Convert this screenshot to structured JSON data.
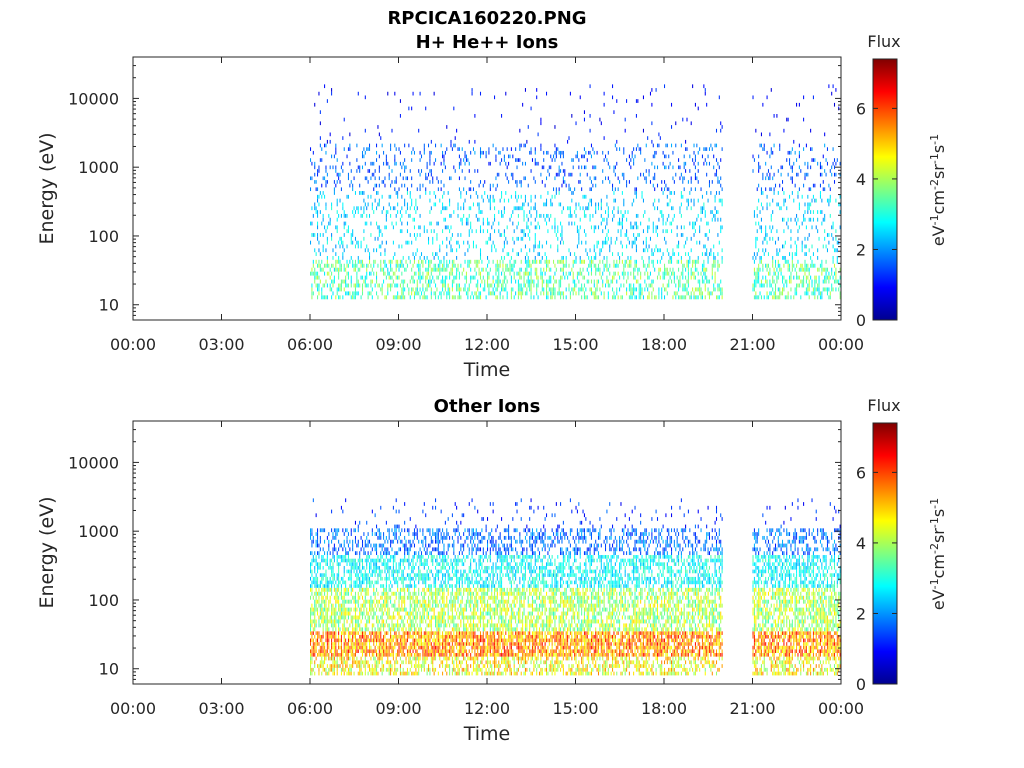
{
  "figure_title": "RPCICA160220.PNG",
  "chart_data": [
    {
      "type": "heatmap",
      "title": "H+ He++ Ions",
      "xlabel": "Time",
      "ylabel": "Energy (eV)",
      "x_tick_labels": [
        "00:00",
        "03:00",
        "06:00",
        "09:00",
        "12:00",
        "15:00",
        "18:00",
        "21:00",
        "00:00"
      ],
      "x_range_hours": [
        0,
        24
      ],
      "y_scale": "log",
      "y_range": [
        6,
        40000
      ],
      "y_ticks": [
        10,
        100,
        1000,
        10000
      ],
      "y_tick_labels": [
        "10",
        "100",
        "1000",
        "10000"
      ],
      "colorbar": {
        "title": "Flux",
        "label": "eV-1cm-2sr-1s-1",
        "range": [
          0,
          7.4
        ],
        "ticks": [
          0,
          2,
          4,
          6
        ],
        "tick_labels": [
          "0",
          "2",
          "4",
          "6"
        ],
        "colormap": "jet"
      },
      "data_coverage_hours": [
        [
          6.0,
          20.0
        ],
        [
          21.0,
          24.0
        ]
      ],
      "seed": 11,
      "columns_per_hour": 21,
      "bands": [
        {
          "e_min": 12,
          "e_max": 45,
          "density": 0.42,
          "flux": 3.4,
          "flux_jitter": 0.9
        },
        {
          "e_min": 45,
          "e_max": 450,
          "density": 0.18,
          "flux": 2.5,
          "flux_jitter": 0.6
        },
        {
          "e_min": 450,
          "e_max": 2200,
          "density": 0.16,
          "flux": 1.6,
          "flux_jitter": 0.6
        },
        {
          "e_min": 2200,
          "e_max": 16000,
          "density": 0.025,
          "flux": 1.0,
          "flux_jitter": 0.4
        }
      ]
    },
    {
      "type": "heatmap",
      "title": "Other Ions",
      "xlabel": "Time",
      "ylabel": "Energy (eV)",
      "x_tick_labels": [
        "00:00",
        "03:00",
        "06:00",
        "09:00",
        "12:00",
        "15:00",
        "18:00",
        "21:00",
        "00:00"
      ],
      "x_range_hours": [
        0,
        24
      ],
      "y_scale": "log",
      "y_range": [
        6,
        40000
      ],
      "y_ticks": [
        10,
        100,
        1000,
        10000
      ],
      "y_tick_labels": [
        "10",
        "100",
        "1000",
        "10000"
      ],
      "colorbar": {
        "title": "Flux",
        "label": "eV-1cm-2sr-1s-1",
        "range": [
          0,
          7.4
        ],
        "ticks": [
          0,
          2,
          4,
          6
        ],
        "tick_labels": [
          "0",
          "2",
          "4",
          "6"
        ],
        "colormap": "jet"
      },
      "data_coverage_hours": [
        [
          6.0,
          20.0
        ],
        [
          21.0,
          24.0
        ]
      ],
      "seed": 29,
      "columns_per_hour": 21,
      "bands": [
        {
          "e_min": 8,
          "e_max": 15,
          "density": 0.55,
          "flux": 4.6,
          "flux_jitter": 1.0
        },
        {
          "e_min": 15,
          "e_max": 35,
          "density": 0.8,
          "flux": 5.4,
          "flux_jitter": 1.0
        },
        {
          "e_min": 35,
          "e_max": 150,
          "density": 0.65,
          "flux": 4.0,
          "flux_jitter": 0.9
        },
        {
          "e_min": 150,
          "e_max": 450,
          "density": 0.55,
          "flux": 2.8,
          "flux_jitter": 0.6
        },
        {
          "e_min": 450,
          "e_max": 1100,
          "density": 0.4,
          "flux": 1.7,
          "flux_jitter": 0.6
        },
        {
          "e_min": 1100,
          "e_max": 3000,
          "density": 0.05,
          "flux": 1.3,
          "flux_jitter": 0.5
        }
      ]
    }
  ]
}
